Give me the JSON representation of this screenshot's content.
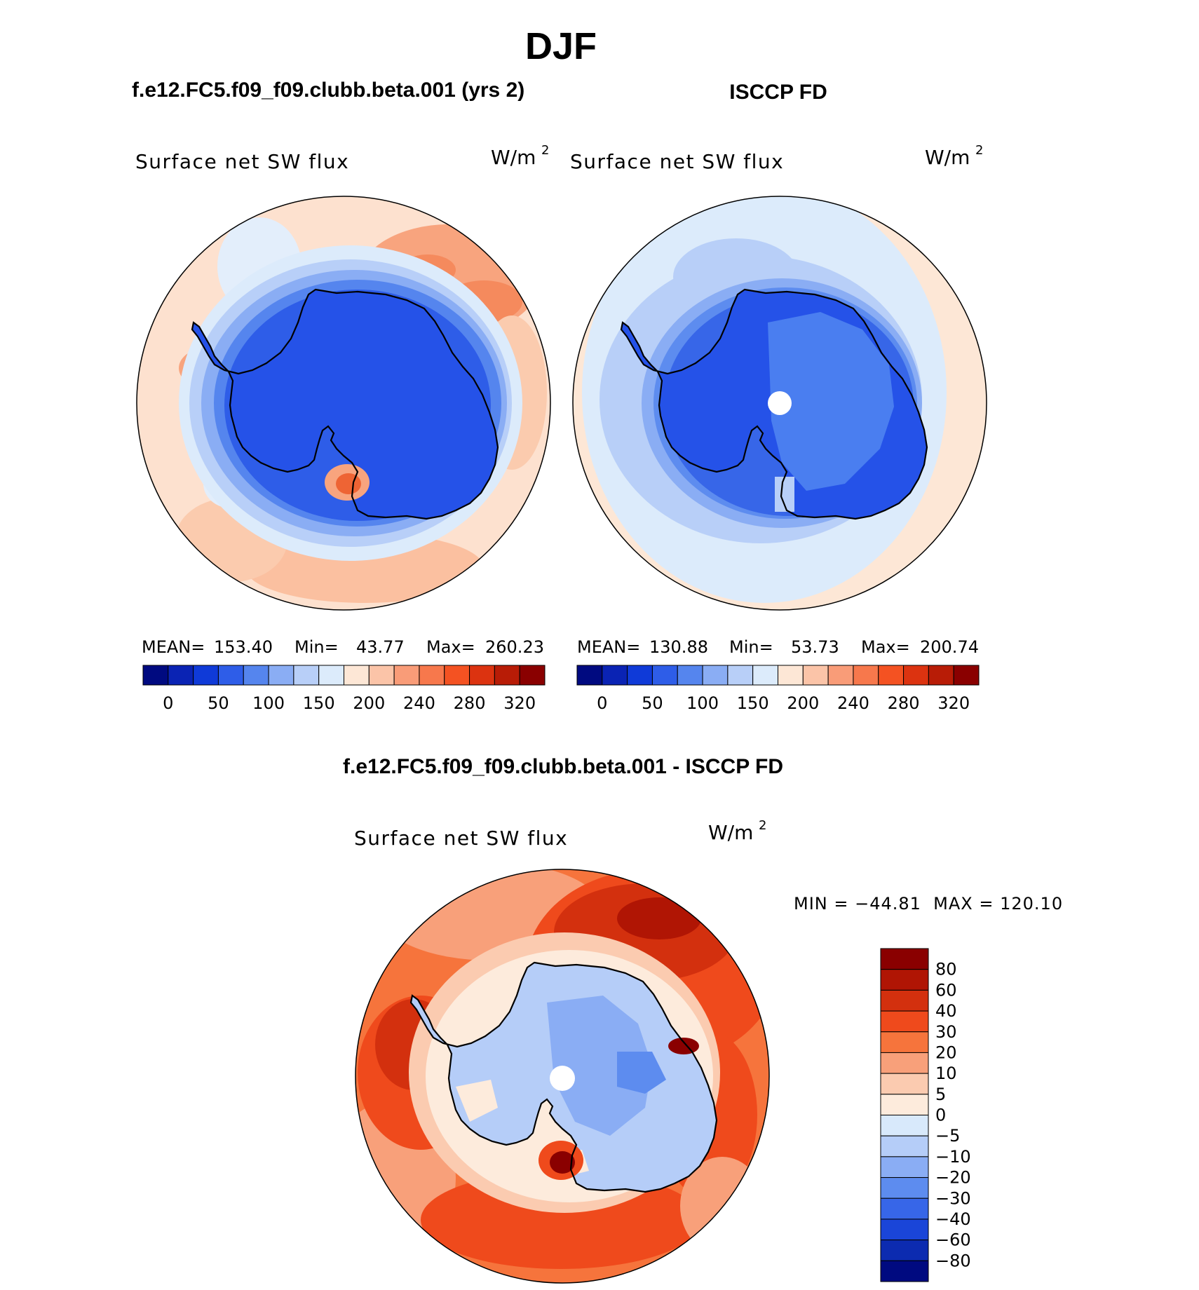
{
  "page_title": "DJF",
  "chart_data": [
    {
      "type": "heatmap",
      "projection": "south-polar-stereographic",
      "case_title": "f.e12.FC5.f09_f09.clubb.beta.001 (yrs 2)",
      "title": "Surface net SW flux",
      "units": "W/m",
      "units_exp": "2",
      "stats": {
        "mean_label": "MEAN=",
        "mean": "153.40",
        "min_label": "Min=",
        "min": "43.77",
        "max_label": "Max=",
        "max": "260.23"
      },
      "colorbar": {
        "orientation": "horizontal",
        "tick_labels": [
          "0",
          "50",
          "100",
          "150",
          "200",
          "240",
          "280",
          "320"
        ],
        "colors": [
          "#000a80",
          "#0a23b4",
          "#0f3ad8",
          "#2e5de8",
          "#5585ee",
          "#8aadf4",
          "#b8cff8",
          "#dcebfb",
          "#fde7d6",
          "#fbc4a8",
          "#f99c78",
          "#f7784c",
          "#f45222",
          "#dc3310",
          "#b81c06",
          "#8a0000"
        ]
      },
      "field_summary": {
        "ocean": "200-280",
        "antarctica": "50-100"
      }
    },
    {
      "type": "heatmap",
      "projection": "south-polar-stereographic",
      "case_title": "ISCCP FD",
      "title": "Surface net SW flux",
      "units": "W/m",
      "units_exp": "2",
      "stats": {
        "mean_label": "MEAN=",
        "mean": "130.88",
        "min_label": "Min=",
        "min": "53.73",
        "max_label": "Max=",
        "max": "200.74"
      },
      "colorbar": {
        "orientation": "horizontal",
        "tick_labels": [
          "0",
          "50",
          "100",
          "150",
          "200",
          "240",
          "280",
          "320"
        ],
        "colors": [
          "#000a80",
          "#0a23b4",
          "#0f3ad8",
          "#2e5de8",
          "#5585ee",
          "#8aadf4",
          "#b8cff8",
          "#dcebfb",
          "#fde7d6",
          "#fbc4a8",
          "#f99c78",
          "#f7784c",
          "#f45222",
          "#dc3310",
          "#b81c06",
          "#8a0000"
        ]
      },
      "field_summary": {
        "ocean": "150-200",
        "antarctica": "50-100"
      }
    },
    {
      "type": "heatmap",
      "projection": "south-polar-stereographic",
      "case_title": "f.e12.FC5.f09_f09.clubb.beta.001 - ISCCP FD",
      "title": "Surface net SW flux",
      "units": "W/m",
      "units_exp": "2",
      "minmax_label": "MIN = −44.81  MAX = 120.10",
      "min": -44.81,
      "max": 120.1,
      "colorbar": {
        "orientation": "vertical",
        "tick_labels": [
          "80",
          "60",
          "40",
          "30",
          "20",
          "10",
          "5",
          "0",
          "−5",
          "−10",
          "−20",
          "−30",
          "−40",
          "−60",
          "−80"
        ],
        "colors": [
          "#8a0000",
          "#b01504",
          "#d3300e",
          "#ef4a1c",
          "#f6743c",
          "#f8a07a",
          "#fbcbb0",
          "#fdebdc",
          "#d8e9fb",
          "#b5cdf8",
          "#8aadf4",
          "#5d8cef",
          "#3766e8",
          "#1a45d8",
          "#0c2bb0",
          "#000a80"
        ]
      },
      "field_summary": {
        "ocean": "20-60",
        "antarctica": "-10-0"
      }
    }
  ]
}
